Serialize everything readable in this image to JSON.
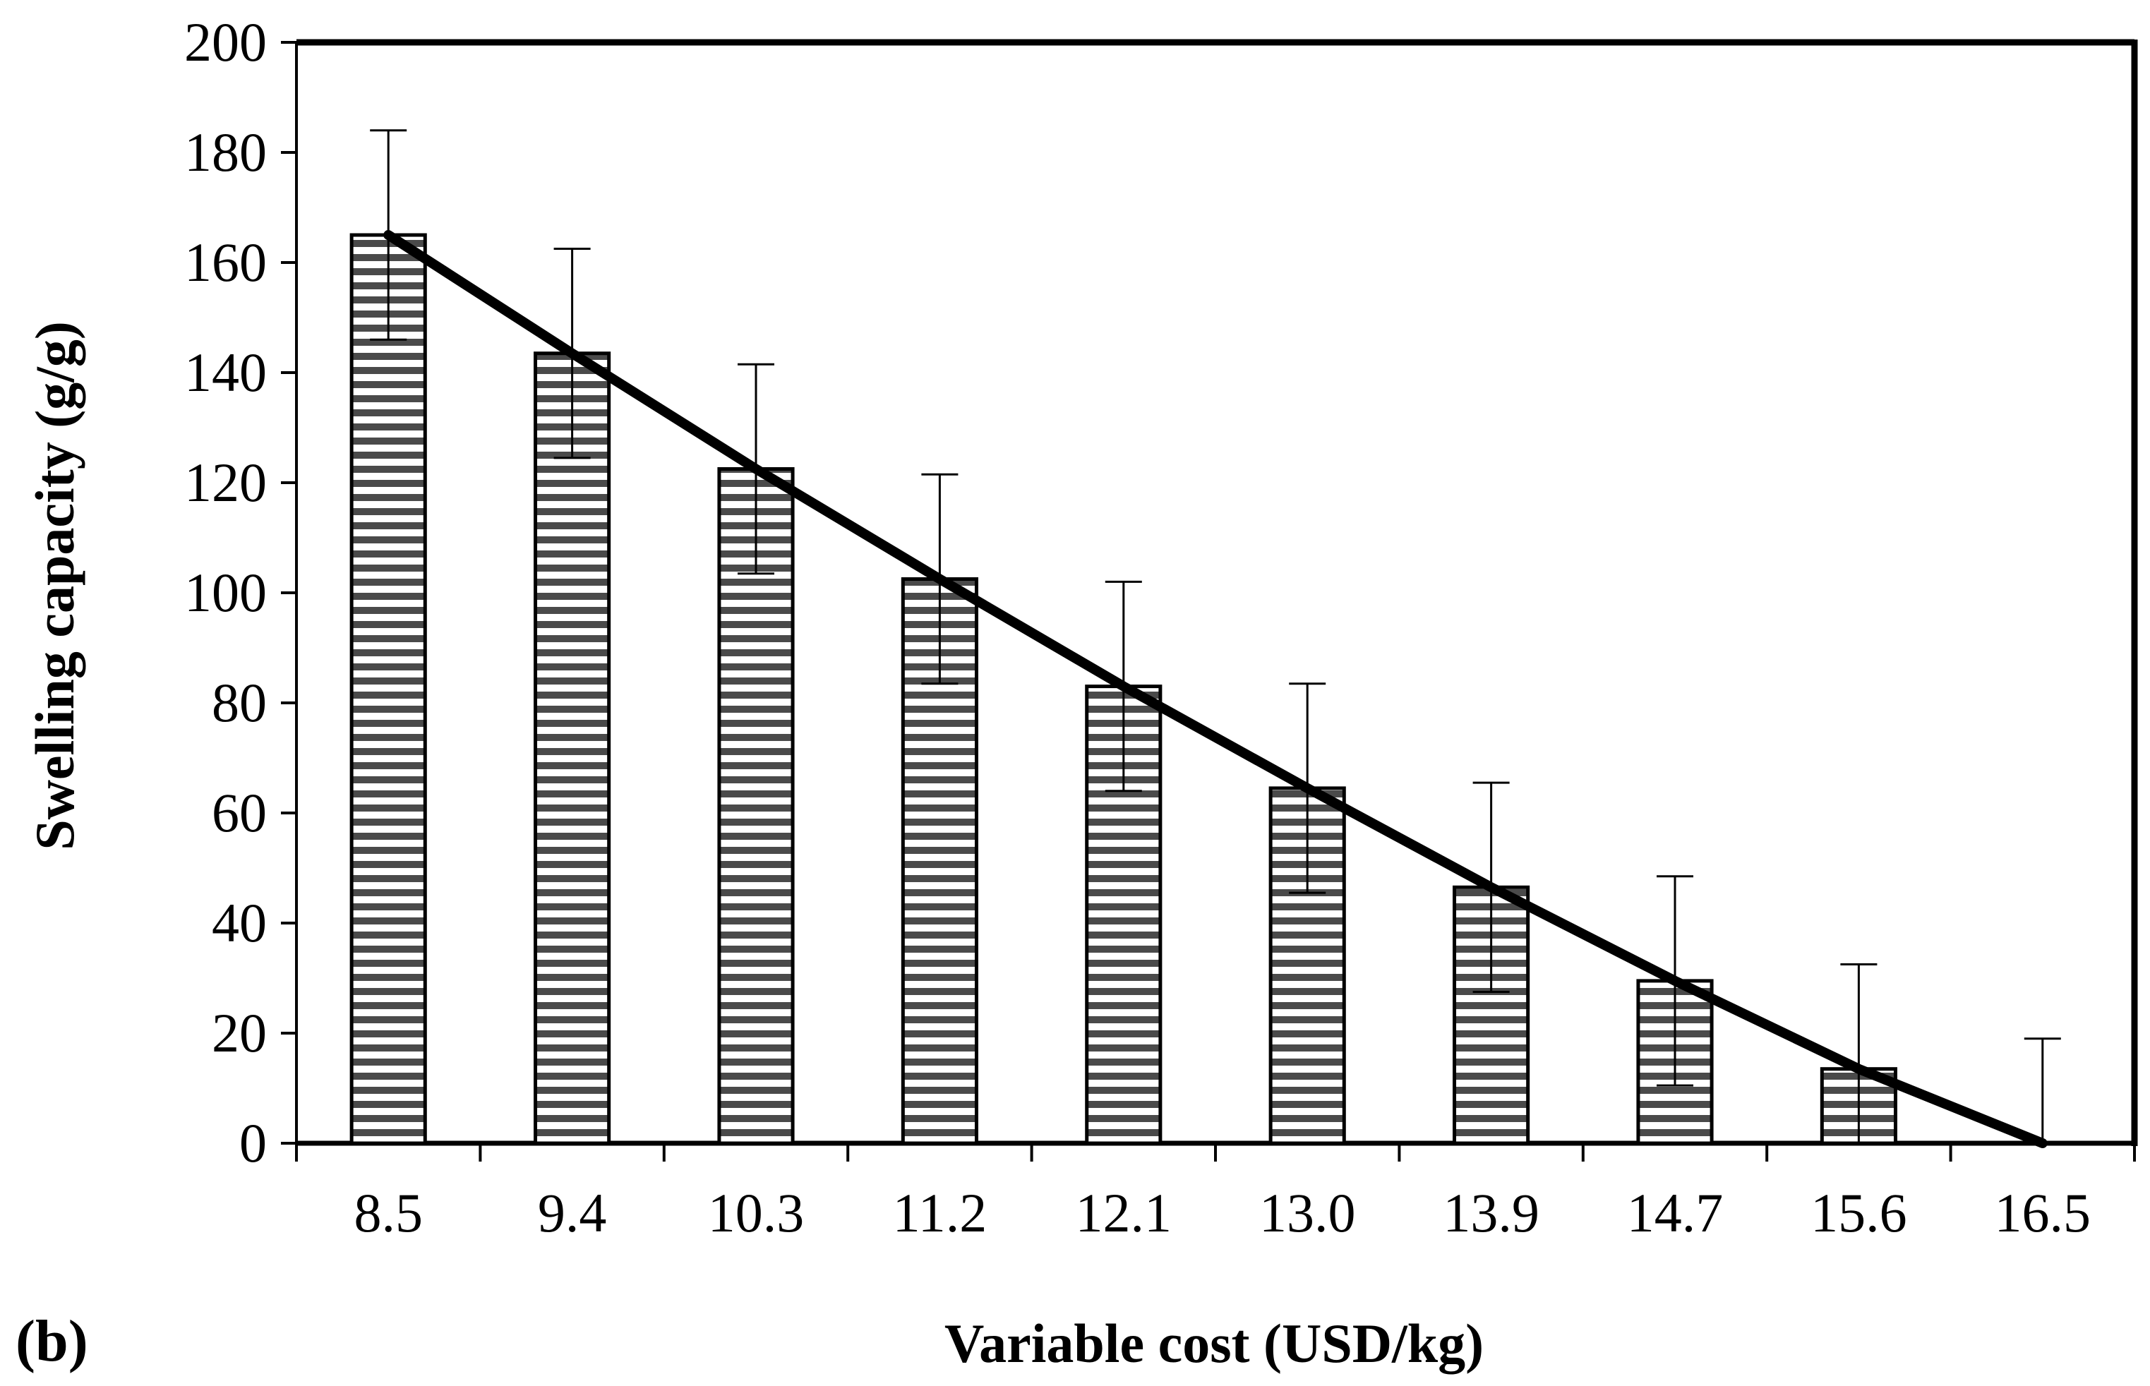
{
  "chart_data": {
    "type": "bar",
    "panel_label": "(b)",
    "title": "",
    "xlabel": "Variable cost (USD/kg)",
    "ylabel": "Swelling capacity (g/g)",
    "categories": [
      "8.5",
      "9.4",
      "10.3",
      "11.2",
      "12.1",
      "13.0",
      "13.9",
      "14.7",
      "15.6",
      "16.5"
    ],
    "series": [
      {
        "name": "Swelling capacity",
        "values": [
          165,
          143.5,
          122.5,
          102.5,
          83,
          64.5,
          46.5,
          29.5,
          13.5,
          0
        ],
        "error_plus": [
          19,
          19,
          19,
          19,
          19,
          19,
          19,
          19,
          19,
          19
        ],
        "error_minus": [
          19,
          19,
          19,
          19,
          19,
          19,
          19,
          19,
          19,
          0
        ]
      }
    ],
    "trendline": {
      "x_index_range": [
        0,
        9
      ],
      "values": [
        165,
        143.5,
        122.5,
        102.5,
        83,
        64.5,
        46.5,
        29.5,
        13.5,
        0
      ]
    },
    "yticks": [
      "0",
      "20",
      "40",
      "60",
      "80",
      "100",
      "120",
      "140",
      "160",
      "180",
      "200"
    ],
    "ylim": [
      0,
      200
    ],
    "grid": false,
    "bar_pattern": "horizontal-stripes",
    "colors": {
      "bar_stripe": "#4a4a4a",
      "bar_fill": "#ffffff",
      "axis": "#000000",
      "trendline": "#000000"
    }
  }
}
